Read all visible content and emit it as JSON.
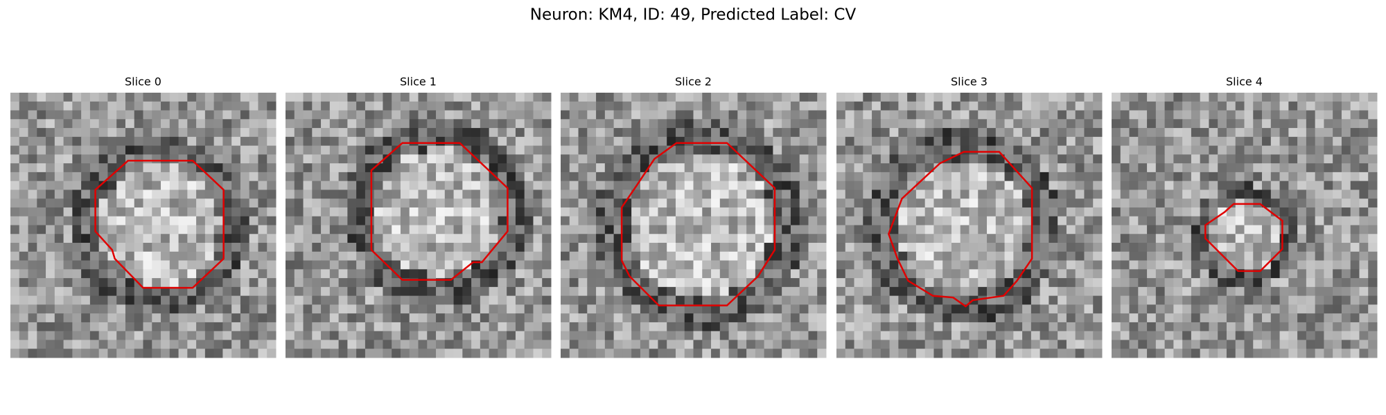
{
  "title": "Neuron: KM4, ID: 49, Predicted Label: CV",
  "panels": [
    {
      "title": "Slice 0"
    },
    {
      "title": "Slice 1"
    },
    {
      "title": "Slice 2"
    },
    {
      "title": "Slice 3"
    },
    {
      "title": "Slice 4"
    }
  ]
}
